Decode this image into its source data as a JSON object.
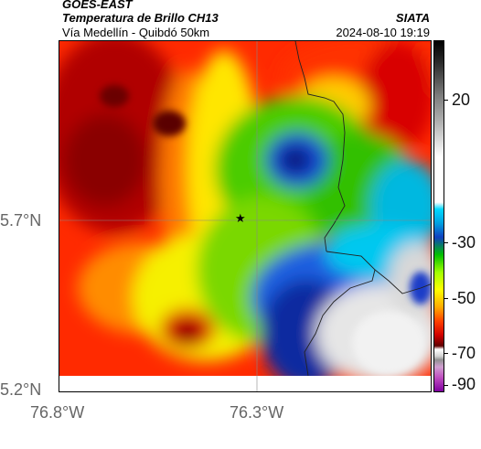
{
  "header": {
    "satellite": "GOES-EAST",
    "product": "Temperatura de Brillo CH13",
    "region": "Vía Medellín - Quibdó 50km",
    "agency": "SIATA",
    "datetime": "2024-08-10 19:19"
  },
  "axes": {
    "x_ticks": [
      "76.8°W",
      "76.3°W"
    ],
    "y_ticks": [
      "5.7°N",
      "5.2°N"
    ]
  },
  "colorbar": {
    "ticks": [
      "20",
      "-30",
      "-50",
      "-70",
      "-90"
    ]
  },
  "marker": {
    "icon": "star-icon"
  }
}
